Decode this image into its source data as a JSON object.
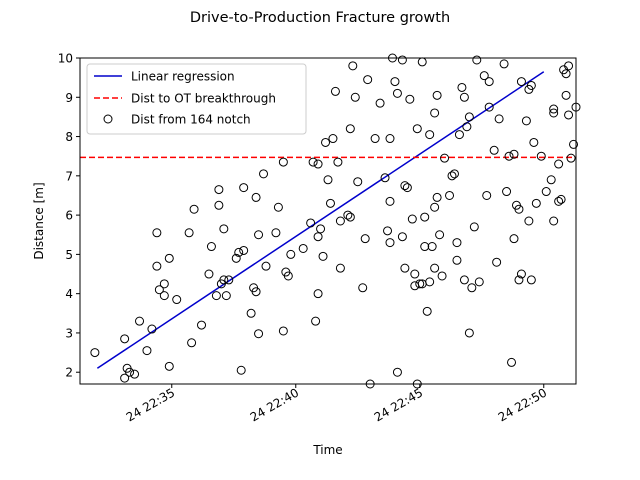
{
  "chart_data": {
    "type": "scatter",
    "title": "Drive-to-Production Fracture growth",
    "xlabel": "Time",
    "ylabel": "Distance [m]",
    "x_unit": "time (day 24, HH:MM)",
    "xlim": [
      "22:31.3",
      "22:51.3"
    ],
    "ylim": [
      1.7,
      10.0
    ],
    "xticks": [
      "24 22:35",
      "24 22:40",
      "24 22:45",
      "24 22:50"
    ],
    "yticks": [
      "2",
      "3",
      "4",
      "5",
      "6",
      "7",
      "8",
      "9",
      "10"
    ],
    "grid": false,
    "legend_location": "upper-left",
    "colors": {
      "regression": "#0000cc",
      "threshold": "#ff0000",
      "points": "#000000"
    },
    "legend": [
      {
        "label": "Linear regression",
        "style": "blue-line"
      },
      {
        "label": "Dist to OT breakthrough",
        "style": "red-dashed-line"
      },
      {
        "label": "Dist from 164 notch",
        "style": "open-circle"
      }
    ],
    "regression": {
      "name": "Linear regression",
      "x": [
        "22:32.0",
        "22:50.0"
      ],
      "y": [
        2.1,
        9.65
      ]
    },
    "threshold": {
      "name": "Dist to OT breakthrough",
      "y": 7.47
    },
    "series": [
      {
        "name": "Dist from 164 notch",
        "points": [
          [
            "22:31.9",
            2.5
          ],
          [
            "22:33.1",
            2.85
          ],
          [
            "22:33.1",
            1.85
          ],
          [
            "22:33.2",
            2.1
          ],
          [
            "22:33.3",
            2.0
          ],
          [
            "22:33.5",
            1.95
          ],
          [
            "22:33.7",
            3.3
          ],
          [
            "22:34.0",
            2.55
          ],
          [
            "22:34.2",
            3.1
          ],
          [
            "22:34.4",
            4.7
          ],
          [
            "22:34.4",
            5.55
          ],
          [
            "22:34.5",
            4.1
          ],
          [
            "22:34.7",
            4.25
          ],
          [
            "22:34.7",
            3.95
          ],
          [
            "22:34.9",
            4.9
          ],
          [
            "22:34.9",
            2.15
          ],
          [
            "22:35.2",
            3.85
          ],
          [
            "22:35.7",
            5.55
          ],
          [
            "22:35.8",
            2.75
          ],
          [
            "22:35.9",
            6.15
          ],
          [
            "22:36.2",
            3.2
          ],
          [
            "22:36.5",
            4.5
          ],
          [
            "22:36.6",
            5.2
          ],
          [
            "22:36.8",
            3.95
          ],
          [
            "22:36.9",
            6.65
          ],
          [
            "22:36.9",
            6.25
          ],
          [
            "22:37.0",
            4.25
          ],
          [
            "22:37.1",
            5.65
          ],
          [
            "22:37.1",
            4.35
          ],
          [
            "22:37.2",
            3.95
          ],
          [
            "22:37.3",
            4.35
          ],
          [
            "22:37.6",
            4.9
          ],
          [
            "22:37.7",
            5.05
          ],
          [
            "22:37.8",
            2.05
          ],
          [
            "22:37.9",
            5.1
          ],
          [
            "22:37.9",
            6.7
          ],
          [
            "22:38.2",
            3.5
          ],
          [
            "22:38.3",
            4.15
          ],
          [
            "22:38.4",
            4.05
          ],
          [
            "22:38.4",
            6.45
          ],
          [
            "22:38.5",
            2.98
          ],
          [
            "22:38.5",
            5.5
          ],
          [
            "22:38.7",
            7.05
          ],
          [
            "22:38.8",
            4.7
          ],
          [
            "22:39.2",
            5.55
          ],
          [
            "22:39.3",
            6.2
          ],
          [
            "22:39.5",
            3.05
          ],
          [
            "22:39.5",
            7.35
          ],
          [
            "22:39.6",
            4.55
          ],
          [
            "22:39.7",
            4.45
          ],
          [
            "22:39.8",
            5.0
          ],
          [
            "22:40.3",
            5.15
          ],
          [
            "22:40.6",
            5.8
          ],
          [
            "22:40.7",
            7.35
          ],
          [
            "22:40.8",
            3.3
          ],
          [
            "22:40.9",
            4.0
          ],
          [
            "22:40.9",
            7.3
          ],
          [
            "22:40.9",
            5.45
          ],
          [
            "22:41.0",
            5.65
          ],
          [
            "22:41.1",
            4.95
          ],
          [
            "22:41.2",
            7.85
          ],
          [
            "22:41.3",
            6.9
          ],
          [
            "22:41.4",
            6.3
          ],
          [
            "22:41.5",
            7.95
          ],
          [
            "22:41.6",
            9.15
          ],
          [
            "22:41.7",
            7.35
          ],
          [
            "22:41.8",
            5.85
          ],
          [
            "22:41.8",
            4.65
          ],
          [
            "22:42.1",
            6.0
          ],
          [
            "22:42.2",
            5.95
          ],
          [
            "22:42.2",
            8.2
          ],
          [
            "22:42.3",
            9.8
          ],
          [
            "22:42.4",
            9.0
          ],
          [
            "22:42.5",
            6.85
          ],
          [
            "22:42.7",
            4.15
          ],
          [
            "22:42.8",
            5.4
          ],
          [
            "22:42.9",
            9.45
          ],
          [
            "22:43.0",
            1.7
          ],
          [
            "22:43.2",
            7.95
          ],
          [
            "22:43.4",
            8.85
          ],
          [
            "22:43.6",
            6.95
          ],
          [
            "22:43.7",
            5.6
          ],
          [
            "22:43.8",
            6.35
          ],
          [
            "22:43.8",
            5.3
          ],
          [
            "22:43.8",
            7.95
          ],
          [
            "22:43.9",
            10.0
          ],
          [
            "22:44.0",
            9.4
          ],
          [
            "22:44.1",
            9.1
          ],
          [
            "22:44.1",
            2.0
          ],
          [
            "22:44.3",
            9.95
          ],
          [
            "22:44.3",
            5.45
          ],
          [
            "22:44.4",
            4.65
          ],
          [
            "22:44.4",
            6.75
          ],
          [
            "22:44.5",
            6.7
          ],
          [
            "22:44.6",
            8.95
          ],
          [
            "22:44.7",
            5.9
          ],
          [
            "22:44.8",
            4.5
          ],
          [
            "22:44.8",
            4.2
          ],
          [
            "22:44.9",
            8.2
          ],
          [
            "22:44.9",
            1.7
          ],
          [
            "22:45.0",
            4.25
          ],
          [
            "22:45.1",
            4.25
          ],
          [
            "22:45.1",
            9.9
          ],
          [
            "22:45.2",
            5.2
          ],
          [
            "22:45.2",
            5.95
          ],
          [
            "22:45.3",
            3.55
          ],
          [
            "22:45.4",
            8.05
          ],
          [
            "22:45.4",
            4.3
          ],
          [
            "22:45.5",
            5.2
          ],
          [
            "22:45.6",
            6.2
          ],
          [
            "22:45.6",
            4.65
          ],
          [
            "22:45.6",
            8.6
          ],
          [
            "22:45.7",
            9.05
          ],
          [
            "22:45.7",
            6.45
          ],
          [
            "22:45.8",
            5.5
          ],
          [
            "22:45.9",
            4.45
          ],
          [
            "22:46.0",
            7.45
          ],
          [
            "22:46.2",
            6.5
          ],
          [
            "22:46.3",
            7.0
          ],
          [
            "22:46.4",
            7.05
          ],
          [
            "22:46.5",
            5.3
          ],
          [
            "22:46.5",
            4.85
          ],
          [
            "22:46.6",
            8.05
          ],
          [
            "22:46.7",
            9.25
          ],
          [
            "22:46.8",
            4.35
          ],
          [
            "22:46.8",
            9.0
          ],
          [
            "22:46.9",
            8.25
          ],
          [
            "22:47.0",
            3.0
          ],
          [
            "22:47.0",
            8.5
          ],
          [
            "22:47.1",
            4.15
          ],
          [
            "22:47.2",
            5.7
          ],
          [
            "22:47.3",
            9.95
          ],
          [
            "22:47.4",
            4.3
          ],
          [
            "22:47.6",
            9.55
          ],
          [
            "22:47.7",
            6.5
          ],
          [
            "22:47.8",
            8.75
          ],
          [
            "22:47.8",
            9.4
          ],
          [
            "22:48.0",
            7.65
          ],
          [
            "22:48.1",
            4.8
          ],
          [
            "22:48.2",
            8.45
          ],
          [
            "22:48.4",
            9.85
          ],
          [
            "22:48.5",
            6.6
          ],
          [
            "22:48.6",
            7.5
          ],
          [
            "22:48.7",
            2.25
          ],
          [
            "22:48.8",
            5.4
          ],
          [
            "22:48.8",
            7.55
          ],
          [
            "22:48.9",
            6.25
          ],
          [
            "22:49.0",
            4.35
          ],
          [
            "22:49.0",
            6.15
          ],
          [
            "22:49.1",
            9.4
          ],
          [
            "22:49.1",
            4.5
          ],
          [
            "22:49.3",
            8.4
          ],
          [
            "22:49.4",
            9.2
          ],
          [
            "22:49.4",
            5.85
          ],
          [
            "22:49.5",
            4.35
          ],
          [
            "22:49.5",
            9.3
          ],
          [
            "22:49.6",
            7.85
          ],
          [
            "22:49.7",
            6.3
          ],
          [
            "22:49.9",
            7.5
          ],
          [
            "22:50.1",
            6.6
          ],
          [
            "22:50.3",
            6.9
          ],
          [
            "22:50.4",
            8.7
          ],
          [
            "22:50.4",
            8.6
          ],
          [
            "22:50.4",
            5.85
          ],
          [
            "22:50.6",
            7.3
          ],
          [
            "22:50.6",
            6.35
          ],
          [
            "22:50.7",
            6.4
          ],
          [
            "22:50.8",
            9.7
          ],
          [
            "22:50.9",
            9.6
          ],
          [
            "22:50.9",
            9.05
          ],
          [
            "22:51.0",
            9.8
          ],
          [
            "22:51.0",
            8.55
          ],
          [
            "22:51.1",
            7.45
          ],
          [
            "22:51.2",
            7.8
          ],
          [
            "22:51.3",
            8.75
          ],
          [
            "22:51.4",
            7.25
          ],
          [
            "22:51.5",
            6.75
          ],
          [
            "22:52.0",
            9.95
          ],
          [
            "22:52.1",
            8.9
          ],
          [
            "22:52.2",
            9.15
          ],
          [
            "22:52.4",
            5.55
          ],
          [
            "22:52.5",
            9.45
          ],
          [
            "22:52.6",
            7.7
          ],
          [
            "22:52.9",
            6.55
          ],
          [
            "22:52.9",
            7.8
          ],
          [
            "22:52.9",
            7.75
          ],
          [
            "22:53.0",
            6.0
          ],
          [
            "22:53.0",
            5.65
          ],
          [
            "22:53.0",
            5.9
          ],
          [
            "22:53.7",
            9.3
          ],
          [
            "22:53.9",
            9.95
          ],
          [
            "22:54.2",
            9.55
          ],
          [
            "22:54.2",
            7.9
          ]
        ]
      }
    ]
  }
}
